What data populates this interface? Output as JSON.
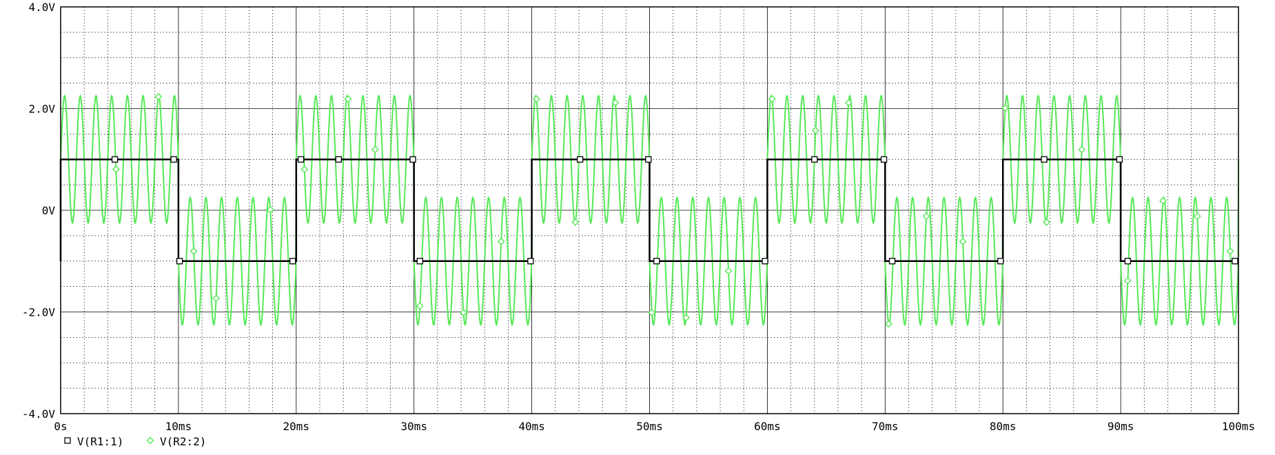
{
  "chart_data": {
    "type": "line",
    "title": "",
    "xlabel": "",
    "ylabel": "",
    "xlim": [
      0,
      100
    ],
    "ylim": [
      -4,
      4
    ],
    "x_unit": "ms",
    "y_unit": "V",
    "grid": true,
    "x_ticks": [
      {
        "value": 0,
        "label": "0s"
      },
      {
        "value": 10,
        "label": "10ms"
      },
      {
        "value": 20,
        "label": "20ms"
      },
      {
        "value": 30,
        "label": "30ms"
      },
      {
        "value": 40,
        "label": "40ms"
      },
      {
        "value": 50,
        "label": "50ms"
      },
      {
        "value": 60,
        "label": "60ms"
      },
      {
        "value": 70,
        "label": "70ms"
      },
      {
        "value": 80,
        "label": "80ms"
      },
      {
        "value": 90,
        "label": "90ms"
      },
      {
        "value": 100,
        "label": "100ms"
      }
    ],
    "y_ticks": [
      {
        "value": 4,
        "label": "4.0V"
      },
      {
        "value": 2,
        "label": "2.0V"
      },
      {
        "value": 0,
        "label": "0V"
      },
      {
        "value": -2,
        "label": "-2.0V"
      },
      {
        "value": -4,
        "label": "-4.0V"
      }
    ],
    "series": [
      {
        "name": "V(R1:1)",
        "marker": "square",
        "color": "#000000",
        "shape": "square wave",
        "amplitude": 1.0,
        "period_ms": 20,
        "points": [
          [
            0,
            -1
          ],
          [
            0,
            1
          ],
          [
            10,
            1
          ],
          [
            10,
            -1
          ],
          [
            20,
            -1
          ],
          [
            20,
            1
          ],
          [
            30,
            1
          ],
          [
            30,
            -1
          ],
          [
            40,
            -1
          ],
          [
            40,
            1
          ],
          [
            50,
            1
          ],
          [
            50,
            -1
          ],
          [
            60,
            -1
          ],
          [
            60,
            1
          ],
          [
            70,
            1
          ],
          [
            70,
            -1
          ],
          [
            80,
            -1
          ],
          [
            80,
            1
          ],
          [
            90,
            1
          ],
          [
            90,
            -1
          ],
          [
            100,
            -1
          ]
        ]
      },
      {
        "name": "V(R2:2)",
        "marker": "diamond",
        "color": "#55e855",
        "shape": "square wave plus sine",
        "sine_amplitude": 1.25,
        "sine_frequency_hz": 750
      }
    ],
    "legend": {
      "position": "bottom-left",
      "entries": [
        {
          "label": "V(R1:1)",
          "marker": "square"
        },
        {
          "label": "V(R2:2)",
          "marker": "diamond"
        }
      ]
    }
  }
}
